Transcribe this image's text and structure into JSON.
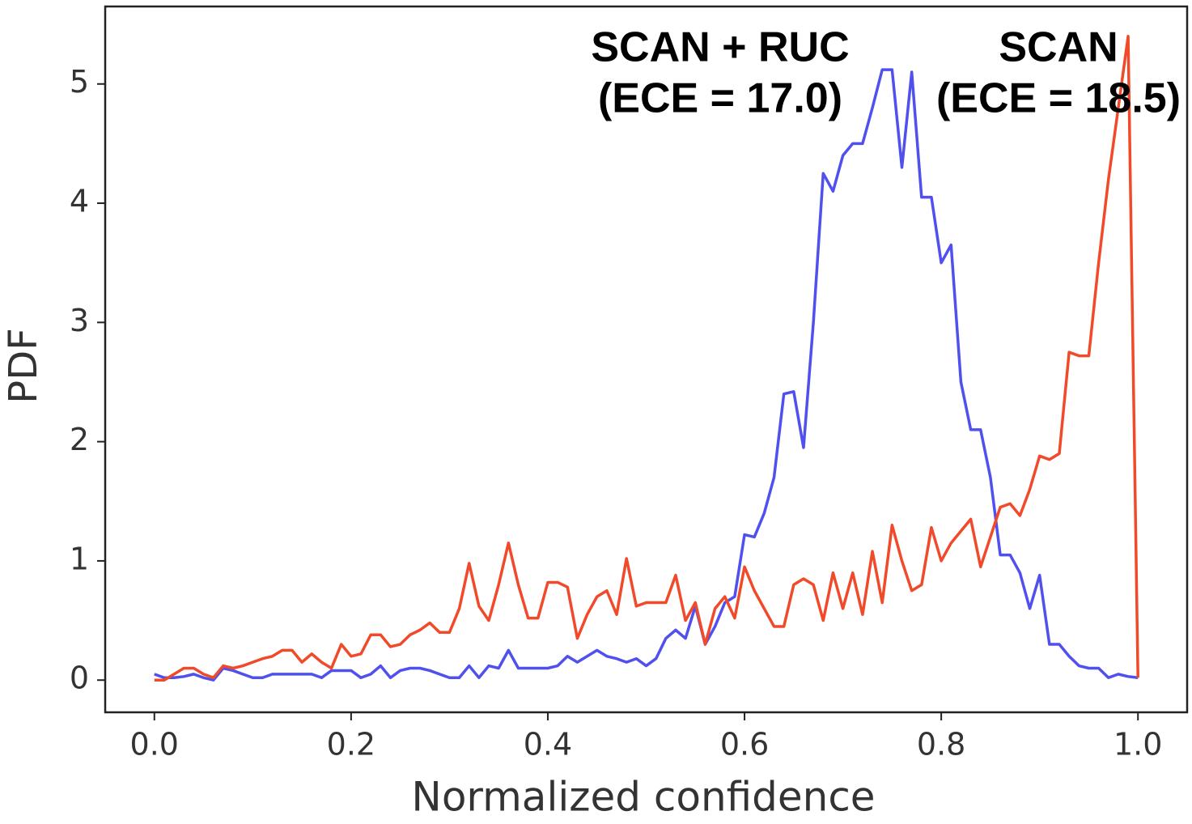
{
  "chart_data": {
    "type": "line",
    "xlabel": "Normalized confidence",
    "ylabel": "PDF",
    "x": [
      0,
      0.01,
      0.02,
      0.03,
      0.04,
      0.05,
      0.06,
      0.07,
      0.08,
      0.09,
      0.1,
      0.11,
      0.12,
      0.13,
      0.14,
      0.15,
      0.16,
      0.17,
      0.18,
      0.19,
      0.2,
      0.21,
      0.22,
      0.23,
      0.24,
      0.25,
      0.26,
      0.27,
      0.28,
      0.29,
      0.3,
      0.31,
      0.32,
      0.33,
      0.34,
      0.35,
      0.36,
      0.37,
      0.38,
      0.39,
      0.4,
      0.41,
      0.42,
      0.43,
      0.44,
      0.45,
      0.46,
      0.47,
      0.48,
      0.49,
      0.5,
      0.51,
      0.52,
      0.53,
      0.54,
      0.55,
      0.56,
      0.57,
      0.58,
      0.59,
      0.6,
      0.61,
      0.62,
      0.63,
      0.64,
      0.65,
      0.66,
      0.67,
      0.68,
      0.69,
      0.7,
      0.71,
      0.72,
      0.73,
      0.74,
      0.75,
      0.76,
      0.77,
      0.78,
      0.79,
      0.8,
      0.81,
      0.82,
      0.83,
      0.84,
      0.85,
      0.86,
      0.87,
      0.88,
      0.89,
      0.9,
      0.91,
      0.92,
      0.93,
      0.94,
      0.95,
      0.96,
      0.97,
      0.98,
      0.99,
      1
    ],
    "series": [
      {
        "name": "SCAN + RUC",
        "annotation": "(ECE = 17.0)",
        "color": "#5050ee",
        "values": [
          0.05,
          0.02,
          0.02,
          0.03,
          0.05,
          0.02,
          0.0,
          0.1,
          0.08,
          0.05,
          0.02,
          0.02,
          0.05,
          0.05,
          0.05,
          0.05,
          0.05,
          0.02,
          0.08,
          0.08,
          0.08,
          0.02,
          0.05,
          0.12,
          0.02,
          0.08,
          0.1,
          0.1,
          0.08,
          0.05,
          0.02,
          0.02,
          0.12,
          0.02,
          0.12,
          0.1,
          0.25,
          0.1,
          0.1,
          0.1,
          0.1,
          0.12,
          0.2,
          0.15,
          0.2,
          0.25,
          0.2,
          0.18,
          0.15,
          0.18,
          0.12,
          0.18,
          0.35,
          0.42,
          0.35,
          0.62,
          0.3,
          0.45,
          0.65,
          0.7,
          1.22,
          1.2,
          1.4,
          1.7,
          2.4,
          2.42,
          1.95,
          3.0,
          4.25,
          4.1,
          4.4,
          4.5,
          4.5,
          4.8,
          5.12,
          5.12,
          4.3,
          5.1,
          4.05,
          4.05,
          3.5,
          3.65,
          2.5,
          2.1,
          2.1,
          1.7,
          1.05,
          1.05,
          0.9,
          0.6,
          0.88,
          0.3,
          0.3,
          0.2,
          0.12,
          0.1,
          0.1,
          0.02,
          0.05,
          0.03,
          0.02
        ]
      },
      {
        "name": "SCAN",
        "annotation": "(ECE = 18.5)",
        "color": "#f04a2a",
        "values": [
          0.0,
          0.0,
          0.05,
          0.1,
          0.1,
          0.05,
          0.02,
          0.12,
          0.1,
          0.12,
          0.15,
          0.18,
          0.2,
          0.25,
          0.25,
          0.15,
          0.22,
          0.15,
          0.1,
          0.3,
          0.2,
          0.22,
          0.38,
          0.38,
          0.28,
          0.3,
          0.38,
          0.42,
          0.48,
          0.4,
          0.4,
          0.6,
          0.98,
          0.62,
          0.5,
          0.8,
          1.15,
          0.8,
          0.52,
          0.52,
          0.82,
          0.82,
          0.78,
          0.35,
          0.55,
          0.7,
          0.75,
          0.55,
          1.02,
          0.62,
          0.65,
          0.65,
          0.65,
          0.88,
          0.5,
          0.65,
          0.3,
          0.6,
          0.7,
          0.52,
          0.95,
          0.75,
          0.6,
          0.45,
          0.45,
          0.8,
          0.85,
          0.8,
          0.5,
          0.9,
          0.6,
          0.9,
          0.55,
          1.08,
          0.65,
          1.3,
          1.0,
          0.75,
          0.8,
          1.28,
          1.0,
          1.15,
          1.25,
          1.35,
          0.95,
          1.2,
          1.45,
          1.48,
          1.38,
          1.6,
          1.88,
          1.85,
          1.9,
          2.75,
          2.72,
          2.72,
          3.5,
          4.2,
          4.8,
          5.4,
          0.02
        ]
      }
    ],
    "xlim": [
      -0.05,
      1.05
    ],
    "ylim": [
      -0.27,
      5.65
    ],
    "xticks": [
      {
        "value": 0,
        "label": "0.0"
      },
      {
        "value": 0.2,
        "label": "0.2"
      },
      {
        "value": 0.4,
        "label": "0.4"
      },
      {
        "value": 0.6,
        "label": "0.6"
      },
      {
        "value": 0.8,
        "label": "0.8"
      },
      {
        "value": 1,
        "label": "1.0"
      }
    ],
    "yticks": [
      0,
      1,
      2,
      3,
      4,
      5
    ]
  }
}
